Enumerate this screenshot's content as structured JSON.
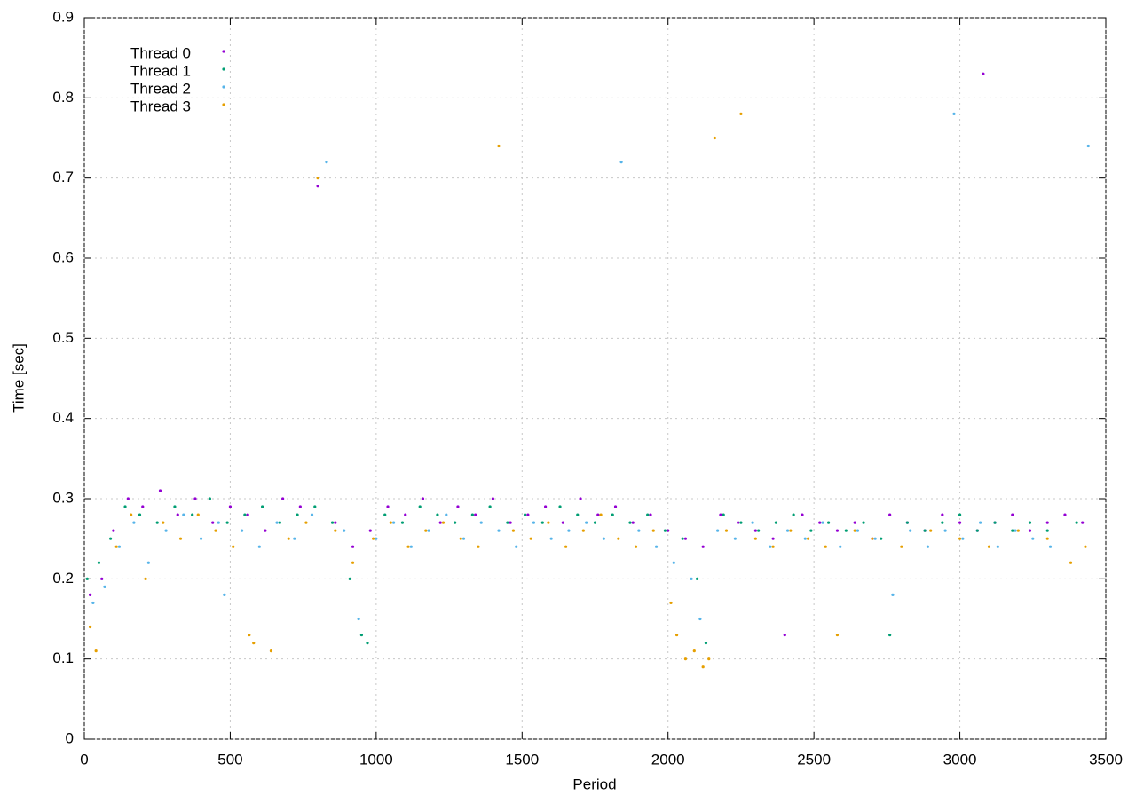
{
  "chart_data": {
    "type": "scatter",
    "xlabel": "Period",
    "ylabel": "Time [sec]",
    "xlim": [
      0,
      3500
    ],
    "xticks": [
      0,
      500,
      1000,
      1500,
      2000,
      2500,
      3000,
      3500
    ],
    "ylim": [
      0,
      0.9
    ],
    "yticks": [
      0,
      0.1,
      0.2,
      0.3,
      0.4,
      0.5,
      0.6,
      0.7,
      0.8,
      0.9
    ],
    "grid": true,
    "legend": "top-left",
    "series": [
      {
        "name": "Thread 0",
        "color": "#9400d3",
        "x": [
          20,
          60,
          100,
          150,
          200,
          260,
          320,
          380,
          440,
          500,
          560,
          620,
          680,
          740,
          800,
          860,
          920,
          980,
          1040,
          1100,
          1160,
          1220,
          1280,
          1340,
          1400,
          1460,
          1520,
          1580,
          1640,
          1700,
          1760,
          1820,
          1880,
          1940,
          2000,
          2060,
          2120,
          2180,
          2240,
          2300,
          2360,
          2400,
          2460,
          2520,
          2580,
          2640,
          2700,
          2760,
          2820,
          2880,
          2940,
          3000,
          3060,
          3080,
          3120,
          3180,
          3240,
          3300,
          3360,
          3420
        ],
        "values": [
          0.18,
          0.2,
          0.26,
          0.3,
          0.29,
          0.31,
          0.28,
          0.3,
          0.27,
          0.29,
          0.28,
          0.26,
          0.3,
          0.29,
          0.69,
          0.27,
          0.24,
          0.26,
          0.29,
          0.28,
          0.3,
          0.27,
          0.29,
          0.28,
          0.3,
          0.27,
          0.28,
          0.29,
          0.27,
          0.3,
          0.28,
          0.29,
          0.27,
          0.28,
          0.26,
          0.25,
          0.24,
          0.28,
          0.27,
          0.26,
          0.25,
          0.13,
          0.28,
          0.27,
          0.26,
          0.27,
          0.25,
          0.28,
          0.27,
          0.26,
          0.28,
          0.27,
          0.26,
          0.83,
          0.27,
          0.28,
          0.26,
          0.27,
          0.28,
          0.27
        ]
      },
      {
        "name": "Thread 1",
        "color": "#009e73",
        "x": [
          10,
          50,
          90,
          140,
          190,
          250,
          310,
          370,
          430,
          490,
          550,
          610,
          670,
          730,
          790,
          850,
          910,
          950,
          970,
          1030,
          1090,
          1150,
          1210,
          1270,
          1330,
          1390,
          1450,
          1510,
          1570,
          1630,
          1690,
          1750,
          1810,
          1870,
          1930,
          1990,
          2050,
          2100,
          2130,
          2190,
          2250,
          2310,
          2370,
          2430,
          2490,
          2550,
          2610,
          2670,
          2730,
          2760,
          2820,
          2880,
          2940,
          3000,
          3060,
          3120,
          3180,
          3240,
          3300,
          3400
        ],
        "values": [
          0.2,
          0.22,
          0.25,
          0.29,
          0.28,
          0.27,
          0.29,
          0.28,
          0.3,
          0.27,
          0.28,
          0.29,
          0.27,
          0.28,
          0.29,
          0.27,
          0.2,
          0.13,
          0.12,
          0.28,
          0.27,
          0.29,
          0.28,
          0.27,
          0.28,
          0.29,
          0.27,
          0.28,
          0.27,
          0.29,
          0.28,
          0.27,
          0.28,
          0.27,
          0.28,
          0.26,
          0.25,
          0.2,
          0.12,
          0.28,
          0.27,
          0.26,
          0.27,
          0.28,
          0.26,
          0.27,
          0.26,
          0.27,
          0.25,
          0.13,
          0.27,
          0.26,
          0.27,
          0.28,
          0.26,
          0.27,
          0.26,
          0.27,
          0.26,
          0.27
        ]
      },
      {
        "name": "Thread 2",
        "color": "#56b4e9",
        "x": [
          30,
          70,
          120,
          170,
          220,
          280,
          340,
          400,
          460,
          480,
          540,
          600,
          660,
          720,
          780,
          830,
          890,
          940,
          1000,
          1060,
          1120,
          1180,
          1240,
          1300,
          1360,
          1420,
          1480,
          1540,
          1600,
          1660,
          1720,
          1780,
          1840,
          1900,
          1960,
          2020,
          2080,
          2110,
          2170,
          2230,
          2290,
          2350,
          2410,
          2470,
          2530,
          2590,
          2650,
          2710,
          2770,
          2830,
          2890,
          2950,
          2980,
          3010,
          3070,
          3130,
          3190,
          3250,
          3310,
          3440
        ],
        "values": [
          0.17,
          0.19,
          0.24,
          0.27,
          0.22,
          0.26,
          0.28,
          0.25,
          0.27,
          0.18,
          0.26,
          0.24,
          0.27,
          0.25,
          0.28,
          0.72,
          0.26,
          0.15,
          0.25,
          0.27,
          0.24,
          0.26,
          0.28,
          0.25,
          0.27,
          0.26,
          0.24,
          0.27,
          0.25,
          0.26,
          0.27,
          0.25,
          0.72,
          0.26,
          0.24,
          0.22,
          0.2,
          0.15,
          0.26,
          0.25,
          0.27,
          0.24,
          0.26,
          0.25,
          0.27,
          0.24,
          0.26,
          0.25,
          0.18,
          0.26,
          0.24,
          0.26,
          0.78,
          0.25,
          0.27,
          0.24,
          0.26,
          0.25,
          0.24,
          0.74
        ]
      },
      {
        "name": "Thread 3",
        "color": "#e69f00",
        "x": [
          20,
          40,
          110,
          160,
          210,
          270,
          330,
          390,
          450,
          510,
          565,
          580,
          640,
          700,
          760,
          800,
          860,
          920,
          990,
          1050,
          1110,
          1170,
          1230,
          1290,
          1350,
          1420,
          1470,
          1530,
          1590,
          1650,
          1710,
          1770,
          1830,
          1890,
          1950,
          2010,
          2030,
          2060,
          2090,
          2120,
          2140,
          2160,
          2200,
          2250,
          2300,
          2360,
          2420,
          2480,
          2540,
          2580,
          2640,
          2700,
          2800,
          2900,
          3000,
          3100,
          3200,
          3300,
          3380,
          3430
        ],
        "values": [
          0.14,
          0.11,
          0.24,
          0.28,
          0.2,
          0.27,
          0.25,
          0.28,
          0.26,
          0.24,
          0.13,
          0.12,
          0.11,
          0.25,
          0.27,
          0.7,
          0.26,
          0.22,
          0.25,
          0.27,
          0.24,
          0.26,
          0.27,
          0.25,
          0.24,
          0.74,
          0.26,
          0.25,
          0.27,
          0.24,
          0.26,
          0.28,
          0.25,
          0.24,
          0.26,
          0.17,
          0.13,
          0.1,
          0.11,
          0.09,
          0.1,
          0.75,
          0.26,
          0.78,
          0.25,
          0.24,
          0.26,
          0.25,
          0.24,
          0.13,
          0.26,
          0.25,
          0.24,
          0.26,
          0.25,
          0.24,
          0.26,
          0.25,
          0.22,
          0.24
        ]
      }
    ]
  }
}
